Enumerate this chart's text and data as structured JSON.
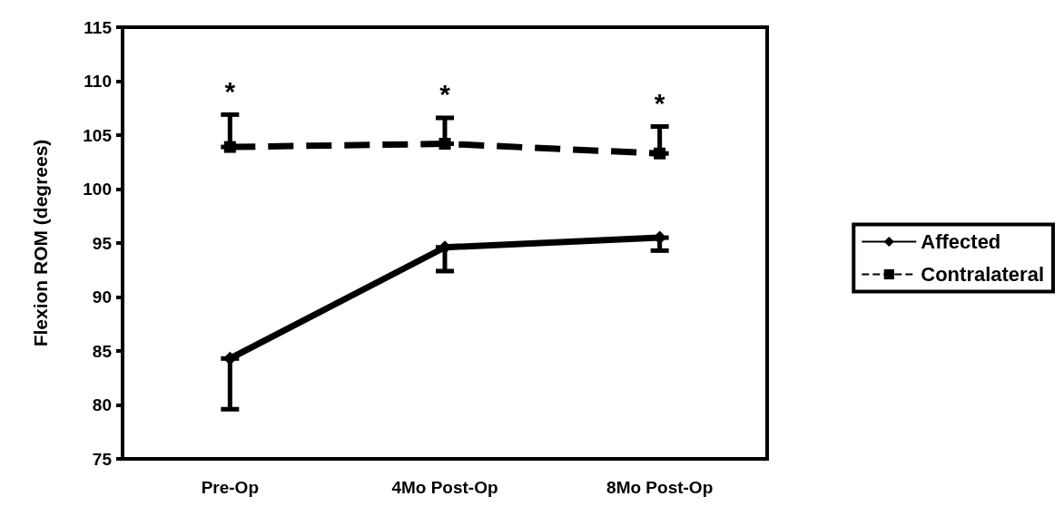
{
  "chart_data": {
    "type": "line",
    "ylabel": "Flexion ROM (degrees)",
    "categories": [
      "Pre-Op",
      "4Mo Post-Op",
      "8Mo Post-Op"
    ],
    "series": [
      {
        "name": "Affected",
        "color": "#000000",
        "values": [
          84.3,
          94.6,
          95.5
        ],
        "errors": [
          [
            79.6,
            84.3
          ],
          [
            92.4,
            94.6
          ],
          [
            94.3,
            95.5
          ]
        ],
        "marker": "diamond",
        "line_style": "solid"
      },
      {
        "name": "Contralateral",
        "color": "#000000",
        "values": [
          103.9,
          104.2,
          103.3
        ],
        "errors": [
          [
            103.9,
            106.9
          ],
          [
            104.2,
            106.6
          ],
          [
            103.3,
            105.8
          ]
        ],
        "marker": "square",
        "line_style": "dashed"
      }
    ],
    "ylim": [
      75,
      115
    ],
    "yticks": [
      75,
      80,
      85,
      90,
      95,
      100,
      105,
      110,
      115
    ],
    "grid": false,
    "legend": "right",
    "annotations": [
      "*",
      "*",
      "*"
    ]
  }
}
